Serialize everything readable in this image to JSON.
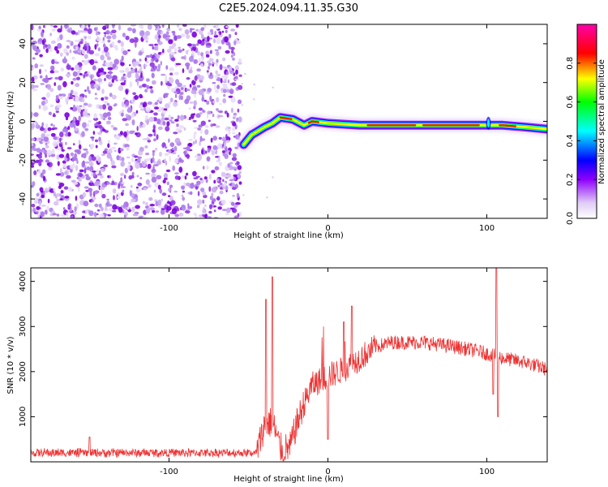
{
  "title": "C2E5.2024.094.11.35.G30",
  "chart_data": [
    {
      "type": "heatmap",
      "xlabel": "Height of straight line (km)",
      "ylabel": "Frequency (Hz)",
      "xlim": [
        -187,
        138
      ],
      "ylim": [
        -50,
        50
      ],
      "x_ticks": [
        -100,
        0,
        100
      ],
      "y_ticks": [
        -40,
        -20,
        0,
        20,
        40
      ],
      "colorbar": {
        "label": "Normalized spectral amplitude",
        "range": [
          0,
          1
        ],
        "ticks": [
          0.0,
          0.2,
          0.4,
          0.6,
          0.8
        ],
        "colors": [
          "#ffffff",
          "#e0ccf5",
          "#8f00ff",
          "#0000ff",
          "#00ffff",
          "#00ff00",
          "#ffff00",
          "#ff0000",
          "#ff00aa"
        ]
      },
      "noise_region_x": [
        -187,
        -55
      ],
      "ridge": [
        {
          "x": -53,
          "y": -12
        },
        {
          "x": -48,
          "y": -7
        },
        {
          "x": -44,
          "y": -5
        },
        {
          "x": -40,
          "y": -3
        },
        {
          "x": -35,
          "y": -1
        },
        {
          "x": -30,
          "y": 2
        },
        {
          "x": -22,
          "y": 1
        },
        {
          "x": -15,
          "y": -2
        },
        {
          "x": -10,
          "y": 0
        },
        {
          "x": 0,
          "y": -1
        },
        {
          "x": 20,
          "y": -2
        },
        {
          "x": 60,
          "y": -2
        },
        {
          "x": 100,
          "y": -2
        },
        {
          "x": 110,
          "y": -2
        },
        {
          "x": 125,
          "y": -3
        },
        {
          "x": 138,
          "y": -4
        }
      ]
    },
    {
      "type": "line",
      "xlabel": "Height of straight line (km)",
      "ylabel": "SNR (10 * v/v)",
      "xlim": [
        -187,
        138
      ],
      "ylim": [
        0,
        4300
      ],
      "x_ticks": [
        -100,
        0,
        100
      ],
      "y_ticks": [
        1000,
        2000,
        3000,
        4000
      ],
      "color": "#ee3333",
      "envelope": [
        {
          "x": -187,
          "y": 200
        },
        {
          "x": -100,
          "y": 200
        },
        {
          "x": -45,
          "y": 200
        },
        {
          "x": -40,
          "y": 800
        },
        {
          "x": -35,
          "y": 900
        },
        {
          "x": -30,
          "y": 300
        },
        {
          "x": -24,
          "y": 300
        },
        {
          "x": -20,
          "y": 800
        },
        {
          "x": -15,
          "y": 1300
        },
        {
          "x": -10,
          "y": 1700
        },
        {
          "x": 0,
          "y": 1900
        },
        {
          "x": 10,
          "y": 2050
        },
        {
          "x": 20,
          "y": 2300
        },
        {
          "x": 30,
          "y": 2550
        },
        {
          "x": 40,
          "y": 2650
        },
        {
          "x": 60,
          "y": 2650
        },
        {
          "x": 80,
          "y": 2550
        },
        {
          "x": 95,
          "y": 2450
        },
        {
          "x": 100,
          "y": 2400
        },
        {
          "x": 110,
          "y": 2300
        },
        {
          "x": 125,
          "y": 2200
        },
        {
          "x": 138,
          "y": 2050
        }
      ],
      "spikes": [
        {
          "x": -35,
          "y": 4100
        },
        {
          "x": -39,
          "y": 3600
        },
        {
          "x": 10,
          "y": 3100
        },
        {
          "x": 15,
          "y": 3450
        },
        {
          "x": 106,
          "y": 4300
        },
        {
          "x": -150,
          "y": 550
        }
      ],
      "dips": [
        {
          "x": 107,
          "y": 1000
        },
        {
          "x": 0,
          "y": 500
        },
        {
          "x": -28,
          "y": 0
        },
        {
          "x": 104,
          "y": 1500
        }
      ]
    }
  ]
}
